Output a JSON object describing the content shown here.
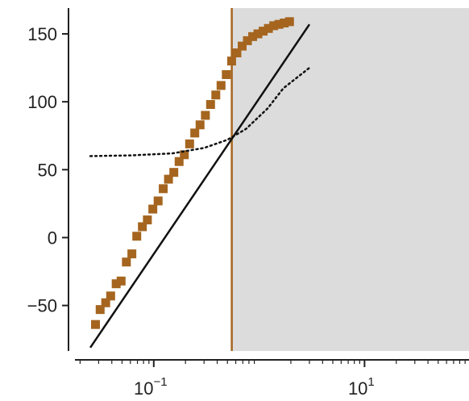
{
  "chart_data": {
    "type": "scatter",
    "title": "",
    "xlabel": "",
    "ylabel": "",
    "xscale": "log",
    "xlim": [
      0.0158,
      98
    ],
    "ylim": [
      -83.5,
      169
    ],
    "y_ticks": [
      {
        "value": -50,
        "label": "−50"
      },
      {
        "value": 0,
        "label": "0"
      },
      {
        "value": 50,
        "label": "50"
      },
      {
        "value": 100,
        "label": "100"
      },
      {
        "value": 150,
        "label": "150"
      }
    ],
    "x_ticks": [
      {
        "value": 0.1,
        "base": "10",
        "exp": "−1"
      },
      {
        "value": 10,
        "base": "10",
        "exp": "1"
      }
    ],
    "grid": false,
    "legend": "none",
    "shaded_region": {
      "x_start": 0.55,
      "x_end": 98,
      "color": "#dcdcdc"
    },
    "vertical_line": {
      "x": 0.55,
      "color": "#a5651f"
    },
    "series": [
      {
        "kind": "points",
        "marker": "square",
        "color": "#a5651f",
        "x": [
          0.028,
          0.031,
          0.035,
          0.039,
          0.044,
          0.049,
          0.055,
          0.062,
          0.069,
          0.078,
          0.087,
          0.098,
          0.11,
          0.123,
          0.138,
          0.155,
          0.174,
          0.195,
          0.219,
          0.245,
          0.275,
          0.309,
          0.346,
          0.388,
          0.435,
          0.488,
          0.548,
          0.615,
          0.69,
          0.774,
          0.868,
          0.974,
          1.092,
          1.225,
          1.375,
          1.542,
          1.73,
          1.941
        ],
        "y": [
          -64,
          -53,
          -48,
          -43,
          -34,
          -32,
          -18,
          -12,
          1,
          8,
          13,
          21,
          27,
          36,
          43,
          48,
          56,
          61,
          69,
          77,
          83,
          90,
          98,
          105,
          112,
          120,
          130,
          136,
          141,
          145,
          148,
          150,
          152,
          154,
          156,
          157,
          158,
          159
        ]
      },
      {
        "kind": "line",
        "style": "solid",
        "color": "#111111",
        "x": [
          0.025,
          3.0
        ],
        "y": [
          -81,
          157
        ]
      },
      {
        "kind": "line",
        "style": "dotted",
        "color": "#111111",
        "x": [
          0.025,
          0.06,
          0.15,
          0.3,
          0.5,
          0.75,
          1.2,
          1.7,
          3.0
        ],
        "y": [
          60,
          60.5,
          62,
          66,
          72,
          80,
          95,
          110,
          125
        ]
      }
    ]
  }
}
